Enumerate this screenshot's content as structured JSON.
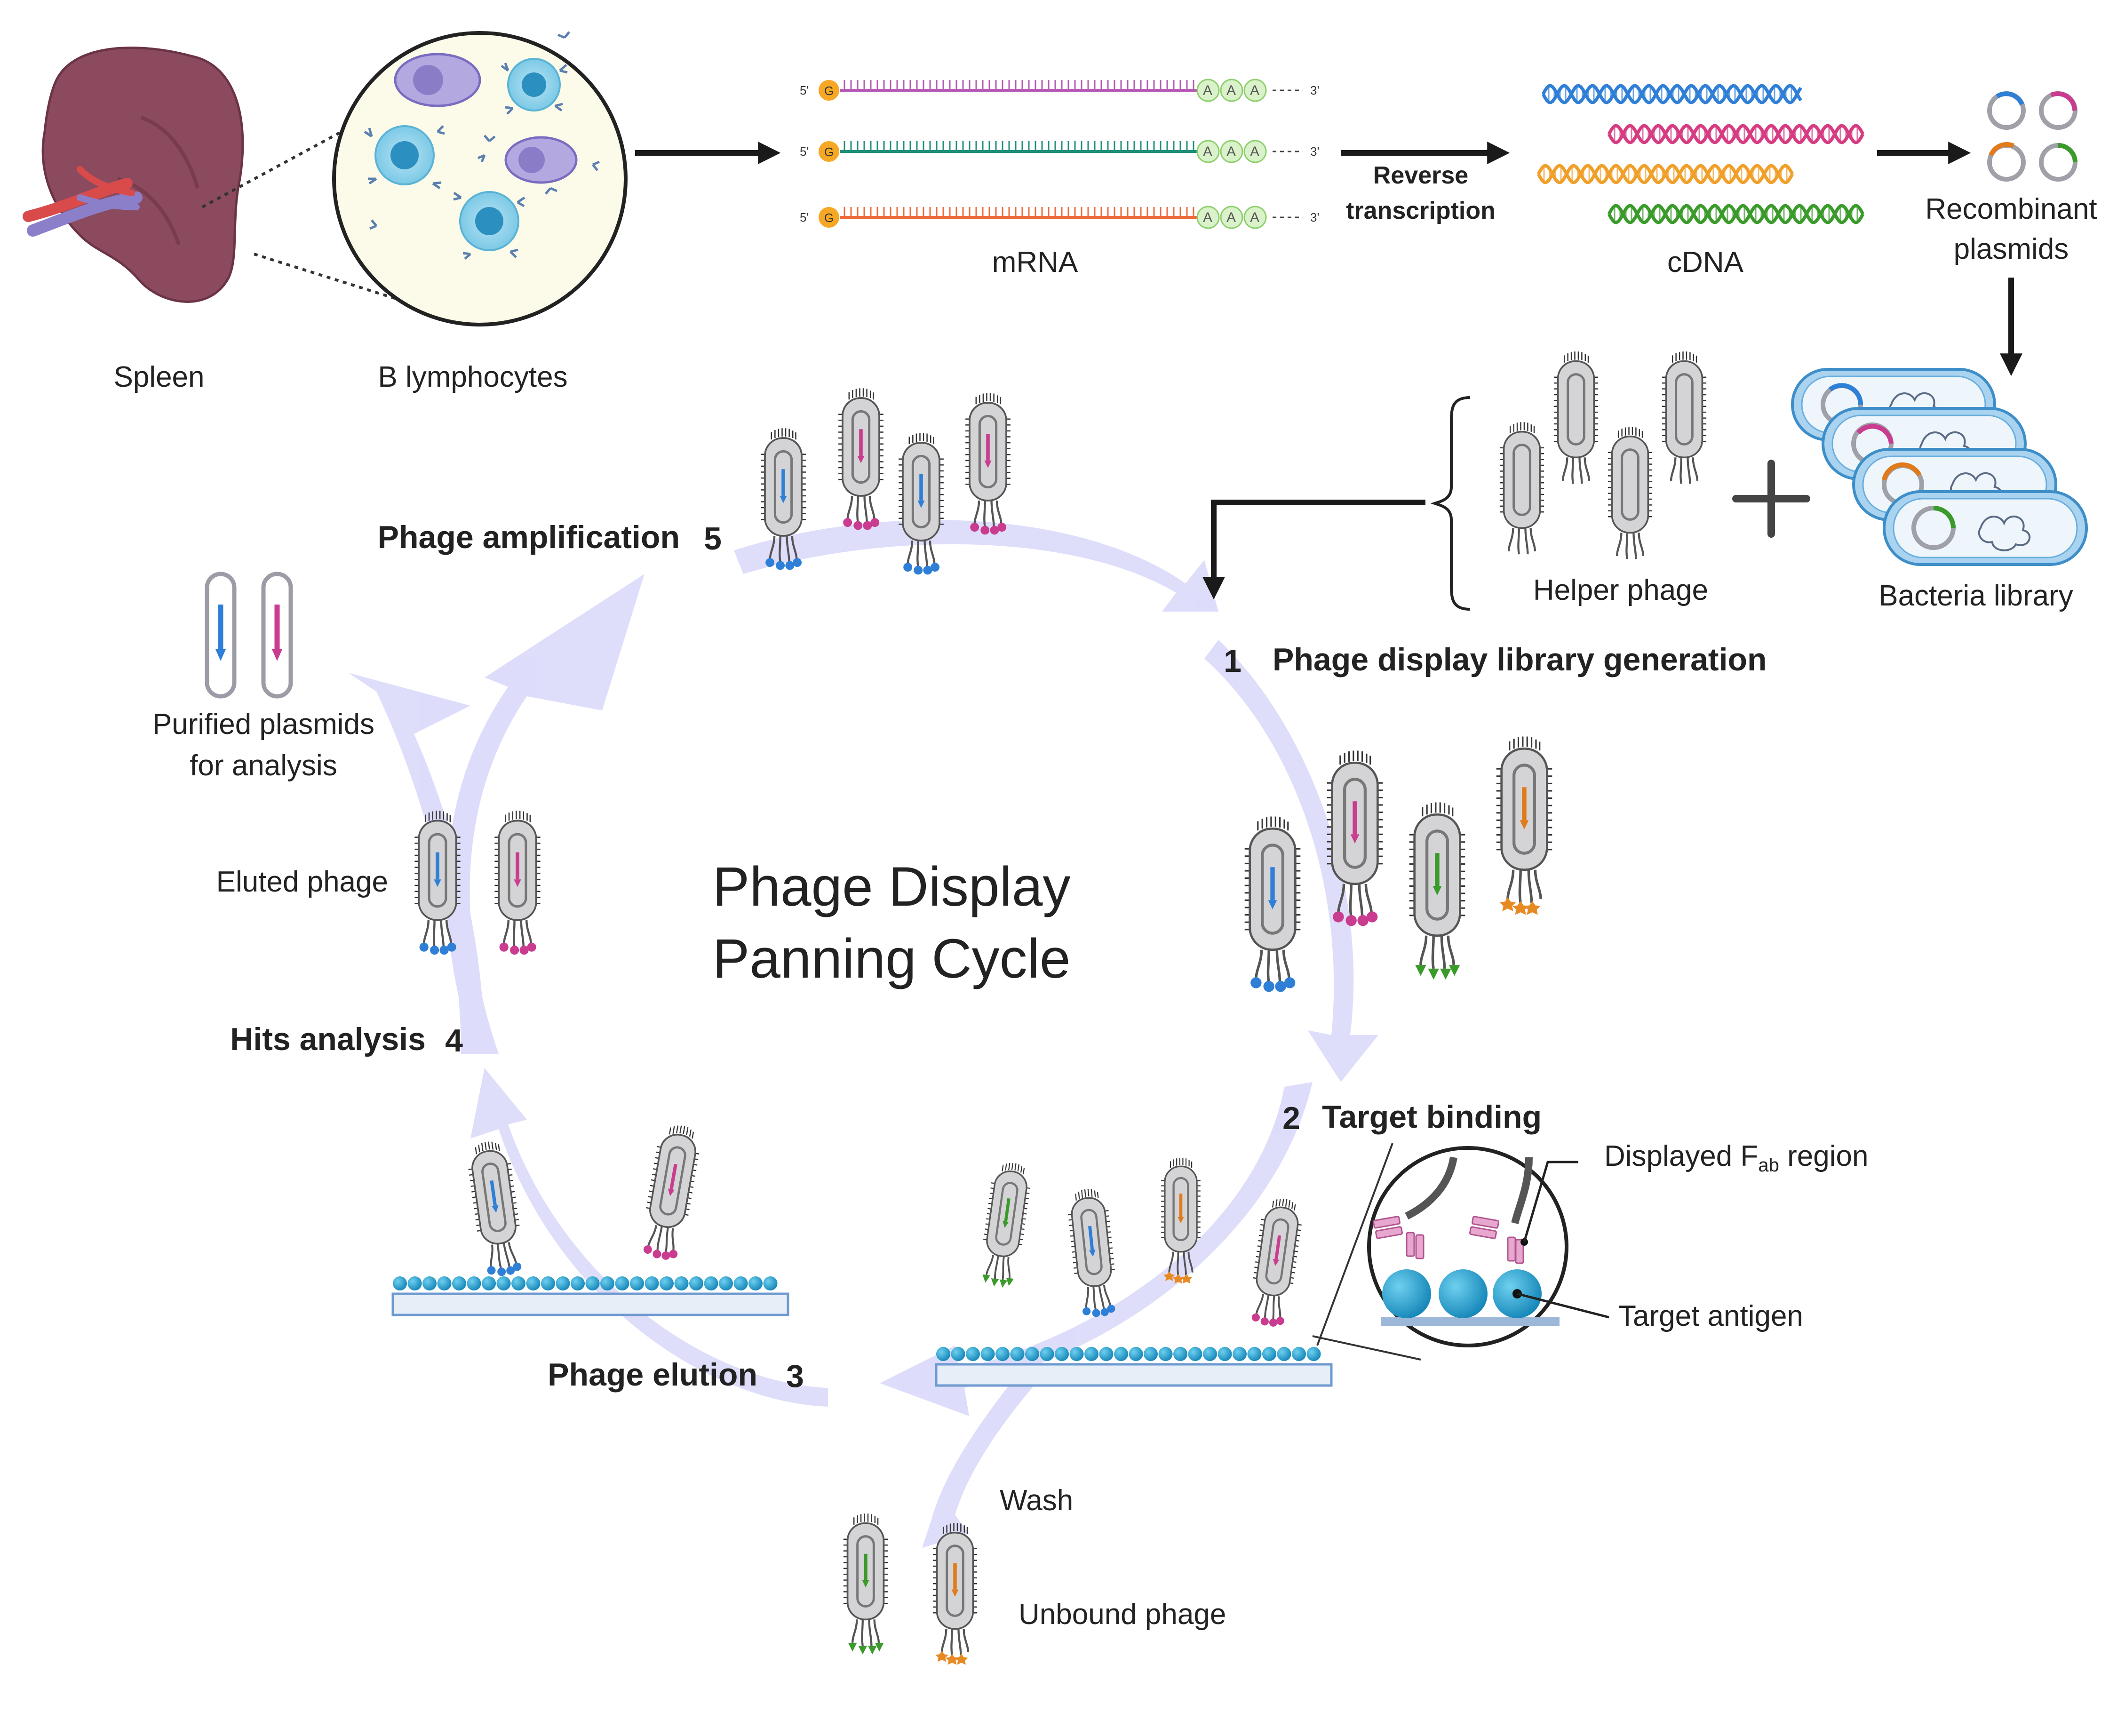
{
  "labels": {
    "spleen": "Spleen",
    "b_lymphocytes": "B lymphocytes",
    "mrna": "mRNA",
    "reverse_transcription_1": "Reverse",
    "reverse_transcription_2": "transcription",
    "cdna": "cDNA",
    "recombinant_1": "Recombinant",
    "recombinant_2": "plasmids",
    "helper_phage": "Helper phage",
    "bacteria_library": "Bacteria library",
    "step1_num": "1",
    "step1": "Phage display library generation",
    "step2_num": "2",
    "step2": "Target binding",
    "step3": "Phage elution",
    "step3_num": "3",
    "step4": "Hits analysis",
    "step4_num": "4",
    "step5": "Phage amplification",
    "step5_num": "5",
    "purified_1": "Purified plasmids",
    "purified_2": "for analysis",
    "eluted_phage": "Eluted phage",
    "title_1": "Phage Display",
    "title_2": "Panning Cycle",
    "fab_prefix": "Displayed F",
    "fab_sub": "ab",
    "fab_suffix": " region",
    "target_antigen": "Target antigen",
    "wash": "Wash",
    "unbound_phage": "Unbound phage",
    "five_prime": "5'",
    "three_prime": "3'",
    "g": "G",
    "a": "A"
  },
  "colors": {
    "cycle_arrow": "#dcdcfb",
    "blue": "#2f7fd6",
    "magenta": "#c93c8f",
    "green": "#3a9a2a",
    "orange": "#e07a1a",
    "spleen": "#8c4a5e",
    "phage_body": "#d4d4d6",
    "bead": "#29a8d3"
  }
}
